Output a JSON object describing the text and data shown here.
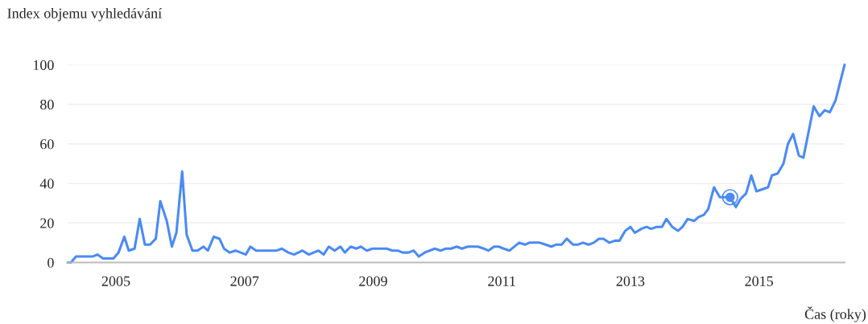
{
  "chart_data": {
    "type": "line",
    "ylabel": "Index objemu vyhledávání",
    "xlabel": "Čas (roky)",
    "xlim": [
      2004.25,
      2016.33
    ],
    "xticks": [
      2005,
      2007,
      2009,
      2011,
      2013,
      2015
    ],
    "ylim": [
      0,
      100
    ],
    "yticks": [
      0,
      20,
      40,
      60,
      80,
      100
    ],
    "grid": "y",
    "marker": "none",
    "line_style": "solid",
    "series": [
      {
        "color": "#4a8af4",
        "x": [
          2004.25,
          2004.3,
          2004.38,
          2004.64,
          2004.71,
          2004.8,
          2004.96,
          2005.04,
          2005.13,
          2005.2,
          2005.29,
          2005.37,
          2005.45,
          2005.53,
          2005.62,
          2005.69,
          2005.79,
          2005.87,
          2005.94,
          2006.03,
          2006.1,
          2006.19,
          2006.27,
          2006.36,
          2006.43,
          2006.52,
          2006.61,
          2006.68,
          2006.77,
          2006.86,
          2007.02,
          2007.09,
          2007.18,
          2007.5,
          2007.58,
          2007.68,
          2007.77,
          2007.9,
          2008.0,
          2008.15,
          2008.23,
          2008.31,
          2008.4,
          2008.49,
          2008.56,
          2008.65,
          2008.74,
          2008.81,
          2008.9,
          2008.99,
          2009.21,
          2009.3,
          2009.38,
          2009.46,
          2009.55,
          2009.63,
          2009.71,
          2009.8,
          2009.96,
          2010.05,
          2010.13,
          2010.21,
          2010.3,
          2010.38,
          2010.47,
          2010.63,
          2010.72,
          2010.79,
          2010.88,
          2010.95,
          2011.03,
          2011.12,
          2011.27,
          2011.36,
          2011.43,
          2011.59,
          2011.68,
          2011.77,
          2011.84,
          2011.93,
          2012.01,
          2012.11,
          2012.18,
          2012.26,
          2012.35,
          2012.43,
          2012.51,
          2012.58,
          2012.67,
          2012.76,
          2012.83,
          2012.92,
          2013.0,
          2013.07,
          2013.17,
          2013.25,
          2013.32,
          2013.41,
          2013.49,
          2013.56,
          2013.65,
          2013.74,
          2013.81,
          2013.89,
          2013.99,
          2014.06,
          2014.14,
          2014.21,
          2014.3,
          2014.39,
          2014.46,
          2014.55,
          2014.64,
          2014.71,
          2014.8,
          2014.88,
          2014.96,
          2015.05,
          2015.14,
          2015.2,
          2015.29,
          2015.38,
          2015.45,
          2015.53,
          2015.62,
          2015.69,
          2015.77,
          2015.85,
          2015.94,
          2016.02,
          2016.1,
          2016.19,
          2016.33
        ],
        "values": [
          0,
          0,
          3,
          3,
          4,
          2,
          2,
          5,
          13,
          6,
          7,
          22,
          9,
          9,
          12,
          31,
          21,
          8,
          15,
          46,
          14,
          6,
          6,
          8,
          6,
          13,
          12,
          7,
          5,
          6,
          4,
          8,
          6,
          6,
          7,
          5,
          4,
          6,
          4,
          6,
          4,
          8,
          6,
          8,
          5,
          8,
          7,
          8,
          6,
          7,
          7,
          6,
          6,
          5,
          5,
          6,
          3,
          5,
          7,
          6,
          7,
          7,
          8,
          7,
          8,
          8,
          7,
          6,
          8,
          8,
          7,
          6,
          10,
          9,
          10,
          10,
          9,
          8,
          9,
          9,
          12,
          9,
          9,
          10,
          9,
          10,
          12,
          12,
          10,
          11,
          11,
          16,
          18,
          15,
          17,
          18,
          17,
          18,
          18,
          22,
          18,
          16,
          18,
          22,
          21,
          23,
          24,
          27,
          38,
          33,
          33,
          33,
          28,
          32,
          35,
          44,
          36,
          37,
          38,
          44,
          45,
          50,
          60,
          65,
          54,
          53,
          66,
          79,
          74,
          77,
          76,
          82,
          100
        ]
      },
      {
        "type": "scatter",
        "color": "#4a8af4",
        "x": [
          2014.55
        ],
        "values": [
          33
        ],
        "marker": "circle"
      }
    ]
  }
}
